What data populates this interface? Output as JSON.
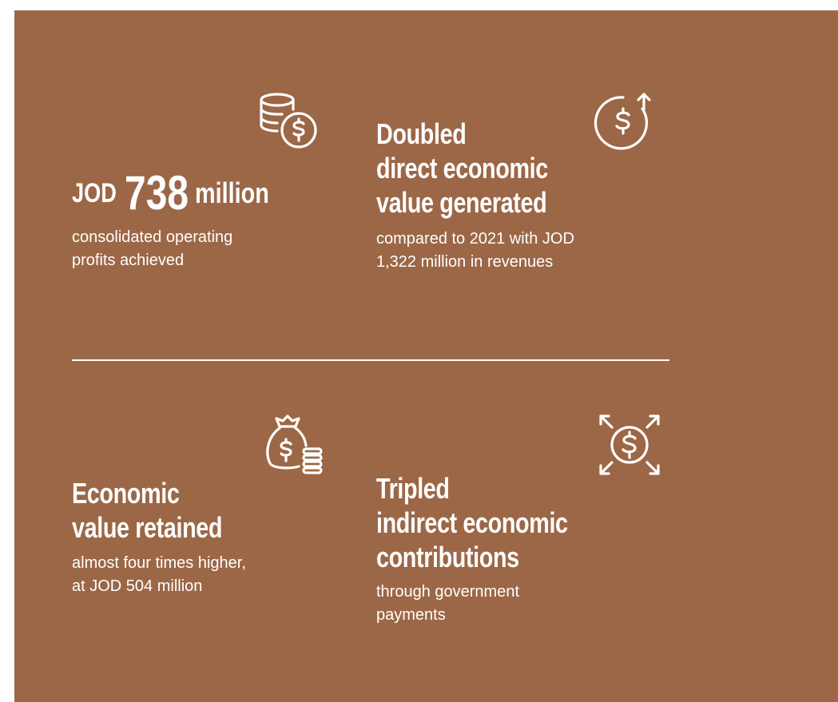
{
  "cards": [
    {
      "headline": {
        "prefix": "JOD",
        "number": "738",
        "suffix": "million"
      },
      "description": [
        "consolidated operating",
        "profits achieved"
      ]
    },
    {
      "title": [
        "Doubled",
        "direct economic",
        "value generated"
      ],
      "description": [
        "compared to 2021 with JOD",
        "1,322 million in revenues"
      ]
    },
    {
      "title": [
        "Economic",
        "value retained"
      ],
      "description": [
        "almost four times higher,",
        "at JOD 504 million"
      ]
    },
    {
      "title": [
        "Tripled",
        "indirect economic",
        "contributions"
      ],
      "description": [
        "through government",
        "payments"
      ]
    }
  ]
}
